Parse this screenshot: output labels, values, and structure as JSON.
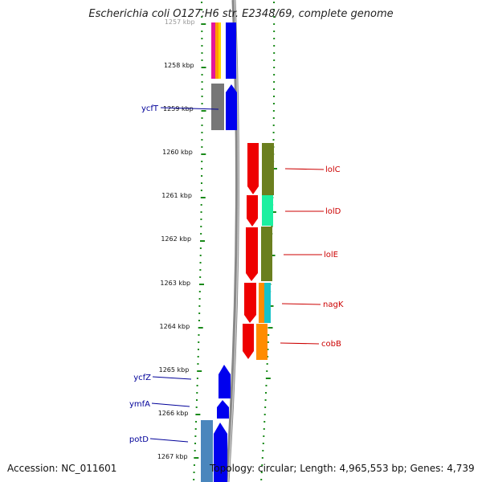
{
  "title": "Escherichia coli O127:H6 str. E2348/69, complete genome",
  "accession": "Accession: NC_011601",
  "summary": "Topology: circular; Length: 4,965,553 bp; Genes: 4,739",
  "ticks": [
    "1257 kbp",
    "1258 kbp",
    "1259 kbp",
    "1260 kbp",
    "1261 kbp",
    "1262 kbp",
    "1263 kbp",
    "1264 kbp",
    "1265 kbp",
    "1266 kbp",
    "1267 kbp"
  ],
  "genes_left": [
    "ycfT",
    "ycfZ",
    "ymfA",
    "potD"
  ],
  "genes_right": [
    "lolC",
    "lolD",
    "lolE",
    "nagK",
    "cobB"
  ],
  "colors": {
    "forward_gene": "#0000ee",
    "reverse_gene": "#ee0000",
    "left_label": "#000099",
    "right_label": "#cc0000",
    "backbone": "#888888",
    "dots": "#1a8a1a",
    "cog_olive": "#6b7f1f",
    "cog_teal": "#17c2c9",
    "cog_mint": "#1cf0a0",
    "cog_orange": "#ff8c00",
    "cog_grey": "#777777",
    "cog_steel": "#4a86bd"
  }
}
